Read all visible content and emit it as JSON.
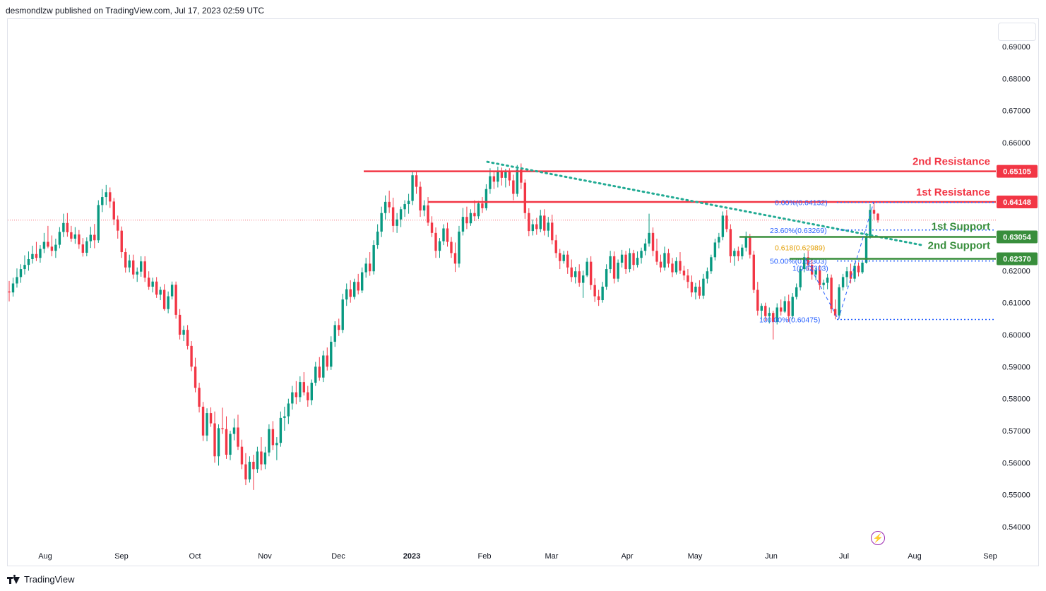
{
  "header": {
    "attribution": "desmondlzw published on TradingView.com, Jul 17, 2023 02:59 UTC"
  },
  "footer": {
    "brand": "TradingView"
  },
  "chart_data": {
    "type": "candlestick",
    "title": "",
    "ylim": [
      0.535,
      0.697
    ],
    "y_ticks": [
      "0.69000",
      "0.68000",
      "0.67000",
      "0.66000",
      "0.65000",
      "0.64000",
      "0.63000",
      "0.62000",
      "0.61000",
      "0.60000",
      "0.59000",
      "0.58000",
      "0.57000",
      "0.56000",
      "0.55000",
      "0.54000"
    ],
    "x_ticks": [
      "Aug",
      "Sep",
      "Oct",
      "Nov",
      "Dec",
      "2023",
      "Feb",
      "Mar",
      "Apr",
      "May",
      "Jun",
      "Jul",
      "Aug",
      "Sep"
    ],
    "grid": false,
    "colors": {
      "up": "#089981",
      "down": "#f23645",
      "resistance": "#f23645",
      "support": "#388e3c",
      "trend": "#22ab94",
      "fib": "#2962ff",
      "golden": "#e3a008"
    },
    "resistance_levels": [
      {
        "name": "2nd Resistance",
        "value": 0.65105,
        "label": "0.65105",
        "start": "Dec"
      },
      {
        "name": "1st Resistance",
        "value": 0.64148,
        "label": "0.64148",
        "start": "Jan"
      }
    ],
    "support_levels": [
      {
        "name": "1st Support",
        "value": 0.63054,
        "label": "0.63054",
        "start": "May"
      },
      {
        "name": "2nd Support",
        "value": 0.6237,
        "label": "0.62370",
        "start": "Jun"
      }
    ],
    "fib_levels": [
      {
        "label": "0.00%(0.64132)",
        "value": 0.64132
      },
      {
        "label": "23.60%(0.63269)",
        "value": 0.63269
      },
      {
        "label": "0.618(0.62989)",
        "value": 0.62989
      },
      {
        "label": "50.00%(0.62303)",
        "value": 0.62303
      },
      {
        "label": "1(0.62303)",
        "value": 0.62303
      },
      {
        "label": "100.00%(0.60475)",
        "value": 0.60475
      }
    ],
    "trendline": {
      "from": {
        "x": "Feb",
        "value": 0.654
      },
      "to": {
        "x": "Jul",
        "value": 0.628
      }
    },
    "last_price": 0.6358,
    "candles": [
      [
        0.6135,
        0.6168,
        0.6104,
        0.6132
      ],
      [
        0.6132,
        0.6178,
        0.6119,
        0.616
      ],
      [
        0.616,
        0.6207,
        0.6147,
        0.618
      ],
      [
        0.618,
        0.622,
        0.6162,
        0.6205
      ],
      [
        0.6205,
        0.6248,
        0.6188,
        0.6218
      ],
      [
        0.6218,
        0.626,
        0.62,
        0.6236
      ],
      [
        0.6236,
        0.6278,
        0.6222,
        0.6252
      ],
      [
        0.6252,
        0.629,
        0.623,
        0.624
      ],
      [
        0.624,
        0.628,
        0.6225,
        0.6268
      ],
      [
        0.6268,
        0.6318,
        0.6255,
        0.629
      ],
      [
        0.629,
        0.634,
        0.627,
        0.6275
      ],
      [
        0.6275,
        0.631,
        0.6245,
        0.6262
      ],
      [
        0.6262,
        0.63,
        0.624,
        0.6281
      ],
      [
        0.6281,
        0.6336,
        0.627,
        0.6321
      ],
      [
        0.6321,
        0.6378,
        0.6305,
        0.6349
      ],
      [
        0.6349,
        0.638,
        0.6306,
        0.632
      ],
      [
        0.632,
        0.634,
        0.629,
        0.63
      ],
      [
        0.63,
        0.6336,
        0.6284,
        0.6313
      ],
      [
        0.6313,
        0.6327,
        0.6268,
        0.6282
      ],
      [
        0.6282,
        0.6302,
        0.6244,
        0.6256
      ],
      [
        0.6256,
        0.6304,
        0.6245,
        0.6292
      ],
      [
        0.6292,
        0.6337,
        0.6271,
        0.6312
      ],
      [
        0.6312,
        0.6346,
        0.627,
        0.6295
      ],
      [
        0.6295,
        0.642,
        0.6287,
        0.6405
      ],
      [
        0.6405,
        0.6455,
        0.6383,
        0.643
      ],
      [
        0.643,
        0.6468,
        0.6405,
        0.6445
      ],
      [
        0.6445,
        0.646,
        0.6396,
        0.6416
      ],
      [
        0.6416,
        0.6427,
        0.6342,
        0.636
      ],
      [
        0.636,
        0.6372,
        0.63,
        0.6325
      ],
      [
        0.6325,
        0.6338,
        0.624,
        0.6258
      ],
      [
        0.6258,
        0.627,
        0.6194,
        0.621
      ],
      [
        0.621,
        0.625,
        0.6195,
        0.6232
      ],
      [
        0.6232,
        0.625,
        0.6175,
        0.6188
      ],
      [
        0.6188,
        0.621,
        0.6165,
        0.6197
      ],
      [
        0.6197,
        0.6245,
        0.6181,
        0.6229
      ],
      [
        0.6229,
        0.6245,
        0.6165,
        0.6178
      ],
      [
        0.6178,
        0.6198,
        0.614,
        0.615
      ],
      [
        0.615,
        0.6178,
        0.6132,
        0.6166
      ],
      [
        0.6166,
        0.618,
        0.6115,
        0.6125
      ],
      [
        0.6125,
        0.615,
        0.6108,
        0.614
      ],
      [
        0.614,
        0.6158,
        0.6075,
        0.608
      ],
      [
        0.608,
        0.6135,
        0.6067,
        0.612
      ],
      [
        0.612,
        0.6166,
        0.611,
        0.6156
      ],
      [
        0.6156,
        0.6166,
        0.605,
        0.6062
      ],
      [
        0.6062,
        0.608,
        0.5985,
        0.6
      ],
      [
        0.6,
        0.6028,
        0.598,
        0.6015
      ],
      [
        0.6015,
        0.603,
        0.5954,
        0.5965
      ],
      [
        0.5965,
        0.598,
        0.5886,
        0.59
      ],
      [
        0.59,
        0.5928,
        0.582,
        0.5834
      ],
      [
        0.5834,
        0.585,
        0.5757,
        0.5775
      ],
      [
        0.5775,
        0.579,
        0.5668,
        0.5685
      ],
      [
        0.5685,
        0.577,
        0.5667,
        0.5755
      ],
      [
        0.5755,
        0.5773,
        0.5712,
        0.5723
      ],
      [
        0.5723,
        0.576,
        0.56,
        0.562
      ],
      [
        0.562,
        0.572,
        0.5591,
        0.5708
      ],
      [
        0.5708,
        0.5772,
        0.569,
        0.5705
      ],
      [
        0.5705,
        0.5745,
        0.5612,
        0.5625
      ],
      [
        0.5625,
        0.57,
        0.5608,
        0.569
      ],
      [
        0.569,
        0.5738,
        0.567,
        0.571
      ],
      [
        0.571,
        0.575,
        0.564,
        0.565
      ],
      [
        0.565,
        0.5672,
        0.558,
        0.5595
      ],
      [
        0.5595,
        0.563,
        0.553,
        0.5548
      ],
      [
        0.5548,
        0.562,
        0.5538,
        0.5603
      ],
      [
        0.5603,
        0.5625,
        0.5515,
        0.558
      ],
      [
        0.558,
        0.565,
        0.5568,
        0.5635
      ],
      [
        0.5635,
        0.568,
        0.5576,
        0.5595
      ],
      [
        0.5595,
        0.565,
        0.558,
        0.5632
      ],
      [
        0.5632,
        0.572,
        0.562,
        0.5705
      ],
      [
        0.5705,
        0.573,
        0.564,
        0.5655
      ],
      [
        0.5655,
        0.568,
        0.5608,
        0.5662
      ],
      [
        0.5662,
        0.576,
        0.565,
        0.574
      ],
      [
        0.574,
        0.5775,
        0.57,
        0.5745
      ],
      [
        0.5745,
        0.58,
        0.5721,
        0.5785
      ],
      [
        0.5785,
        0.584,
        0.5766,
        0.582
      ],
      [
        0.582,
        0.5855,
        0.5783,
        0.5805
      ],
      [
        0.5805,
        0.587,
        0.579,
        0.5852
      ],
      [
        0.5852,
        0.5883,
        0.581,
        0.582
      ],
      [
        0.582,
        0.584,
        0.5775,
        0.5795
      ],
      [
        0.5795,
        0.586,
        0.578,
        0.585
      ],
      [
        0.585,
        0.5915,
        0.584,
        0.59
      ],
      [
        0.59,
        0.593,
        0.5856,
        0.5866
      ],
      [
        0.5866,
        0.595,
        0.5852,
        0.5935
      ],
      [
        0.5935,
        0.596,
        0.5888,
        0.59
      ],
      [
        0.59,
        0.5995,
        0.589,
        0.5978
      ],
      [
        0.5978,
        0.6042,
        0.5962,
        0.603
      ],
      [
        0.603,
        0.605,
        0.5996,
        0.6015
      ],
      [
        0.6015,
        0.6128,
        0.6005,
        0.611
      ],
      [
        0.611,
        0.616,
        0.609,
        0.6142
      ],
      [
        0.6142,
        0.617,
        0.61,
        0.6118
      ],
      [
        0.6118,
        0.6175,
        0.611,
        0.6165
      ],
      [
        0.6165,
        0.619,
        0.6126,
        0.6138
      ],
      [
        0.6138,
        0.621,
        0.613,
        0.6195
      ],
      [
        0.6195,
        0.624,
        0.6178,
        0.6222
      ],
      [
        0.6222,
        0.6258,
        0.6184,
        0.6198
      ],
      [
        0.6198,
        0.6295,
        0.6188,
        0.628
      ],
      [
        0.628,
        0.6345,
        0.6268,
        0.6322
      ],
      [
        0.6322,
        0.64,
        0.6305,
        0.638
      ],
      [
        0.638,
        0.6435,
        0.636,
        0.6415
      ],
      [
        0.6415,
        0.645,
        0.638,
        0.6398
      ],
      [
        0.6398,
        0.6428,
        0.632,
        0.634
      ],
      [
        0.634,
        0.638,
        0.6318,
        0.636
      ],
      [
        0.636,
        0.64,
        0.6336,
        0.6392
      ],
      [
        0.6392,
        0.642,
        0.6368,
        0.6408
      ],
      [
        0.6408,
        0.644,
        0.6378,
        0.6418
      ],
      [
        0.6418,
        0.6512,
        0.6405,
        0.6498
      ],
      [
        0.6498,
        0.651,
        0.644,
        0.6462
      ],
      [
        0.6462,
        0.6478,
        0.6368,
        0.6388
      ],
      [
        0.6388,
        0.642,
        0.637,
        0.6404
      ],
      [
        0.6404,
        0.643,
        0.634,
        0.635
      ],
      [
        0.635,
        0.637,
        0.6305,
        0.6318
      ],
      [
        0.6318,
        0.6335,
        0.624,
        0.6262
      ],
      [
        0.6262,
        0.6302,
        0.624,
        0.6292
      ],
      [
        0.6292,
        0.6345,
        0.628,
        0.6332
      ],
      [
        0.6332,
        0.635,
        0.6275,
        0.629
      ],
      [
        0.629,
        0.6305,
        0.624,
        0.6255
      ],
      [
        0.6255,
        0.6288,
        0.6196,
        0.6222
      ],
      [
        0.6222,
        0.634,
        0.621,
        0.6322
      ],
      [
        0.6322,
        0.6396,
        0.631,
        0.6368
      ],
      [
        0.6368,
        0.64,
        0.633,
        0.6348
      ],
      [
        0.6348,
        0.6392,
        0.634,
        0.638
      ],
      [
        0.638,
        0.642,
        0.6355,
        0.637
      ],
      [
        0.637,
        0.6418,
        0.6362,
        0.641
      ],
      [
        0.641,
        0.643,
        0.638,
        0.6395
      ],
      [
        0.6395,
        0.647,
        0.6388,
        0.6455
      ],
      [
        0.6455,
        0.652,
        0.644,
        0.6495
      ],
      [
        0.6495,
        0.651,
        0.6455,
        0.6478
      ],
      [
        0.6478,
        0.6525,
        0.646,
        0.6512
      ],
      [
        0.6512,
        0.6522,
        0.6466,
        0.649
      ],
      [
        0.649,
        0.6518,
        0.646,
        0.6508
      ],
      [
        0.6508,
        0.652,
        0.6465,
        0.6482
      ],
      [
        0.6482,
        0.65,
        0.642,
        0.644
      ],
      [
        0.644,
        0.653,
        0.6431,
        0.6516
      ],
      [
        0.6516,
        0.6535,
        0.6455,
        0.6475
      ],
      [
        0.6475,
        0.6485,
        0.6362,
        0.638
      ],
      [
        0.638,
        0.6395,
        0.6308,
        0.6324
      ],
      [
        0.6324,
        0.636,
        0.631,
        0.6345
      ],
      [
        0.6345,
        0.6365,
        0.6312,
        0.633
      ],
      [
        0.633,
        0.639,
        0.632,
        0.6372
      ],
      [
        0.6372,
        0.6392,
        0.631,
        0.6325
      ],
      [
        0.6325,
        0.6368,
        0.6305,
        0.635
      ],
      [
        0.635,
        0.6375,
        0.6282,
        0.6295
      ],
      [
        0.6295,
        0.6312,
        0.624,
        0.6255
      ],
      [
        0.6255,
        0.6268,
        0.6205,
        0.623
      ],
      [
        0.623,
        0.6262,
        0.6222,
        0.625
      ],
      [
        0.625,
        0.6262,
        0.619,
        0.621
      ],
      [
        0.621,
        0.6235,
        0.6165,
        0.618
      ],
      [
        0.618,
        0.6212,
        0.616,
        0.6198
      ],
      [
        0.6198,
        0.622,
        0.615,
        0.6162
      ],
      [
        0.6162,
        0.62,
        0.6115,
        0.6185
      ],
      [
        0.6185,
        0.624,
        0.618,
        0.6228
      ],
      [
        0.6228,
        0.6245,
        0.614,
        0.6155
      ],
      [
        0.6155,
        0.6176,
        0.6102,
        0.612
      ],
      [
        0.612,
        0.614,
        0.609,
        0.6108
      ],
      [
        0.6108,
        0.6165,
        0.61,
        0.615
      ],
      [
        0.615,
        0.622,
        0.614,
        0.6205
      ],
      [
        0.6205,
        0.6262,
        0.6192,
        0.6245
      ],
      [
        0.6245,
        0.626,
        0.616,
        0.6175
      ],
      [
        0.6175,
        0.6235,
        0.6165,
        0.6225
      ],
      [
        0.6225,
        0.6265,
        0.621,
        0.625
      ],
      [
        0.625,
        0.6262,
        0.619,
        0.6205
      ],
      [
        0.6205,
        0.627,
        0.6195,
        0.6255
      ],
      [
        0.6255,
        0.6265,
        0.62,
        0.6218
      ],
      [
        0.6218,
        0.626,
        0.621,
        0.624
      ],
      [
        0.624,
        0.6272,
        0.6222,
        0.6262
      ],
      [
        0.6262,
        0.63,
        0.6248,
        0.6285
      ],
      [
        0.6285,
        0.6378,
        0.6275,
        0.6318
      ],
      [
        0.6318,
        0.6335,
        0.6245,
        0.6262
      ],
      [
        0.6262,
        0.63,
        0.6218,
        0.6228
      ],
      [
        0.6228,
        0.625,
        0.6195,
        0.621
      ],
      [
        0.621,
        0.6275,
        0.62,
        0.6255
      ],
      [
        0.6255,
        0.6268,
        0.621,
        0.6222
      ],
      [
        0.6222,
        0.624,
        0.618,
        0.6195
      ],
      [
        0.6195,
        0.6242,
        0.6188,
        0.623
      ],
      [
        0.623,
        0.6258,
        0.619,
        0.62
      ],
      [
        0.62,
        0.6215,
        0.617,
        0.6185
      ],
      [
        0.6185,
        0.6205,
        0.6145,
        0.6165
      ],
      [
        0.6165,
        0.6185,
        0.6118,
        0.6132
      ],
      [
        0.6132,
        0.6162,
        0.611,
        0.615
      ],
      [
        0.615,
        0.617,
        0.6112,
        0.6122
      ],
      [
        0.6122,
        0.619,
        0.6112,
        0.6175
      ],
      [
        0.6175,
        0.621,
        0.616,
        0.6198
      ],
      [
        0.6198,
        0.625,
        0.619,
        0.6242
      ],
      [
        0.6242,
        0.63,
        0.6232,
        0.6288
      ],
      [
        0.6288,
        0.6318,
        0.627,
        0.6305
      ],
      [
        0.6305,
        0.6385,
        0.6295,
        0.6372
      ],
      [
        0.6372,
        0.639,
        0.632,
        0.633
      ],
      [
        0.633,
        0.6345,
        0.6225,
        0.6245
      ],
      [
        0.6245,
        0.627,
        0.6215,
        0.6262
      ],
      [
        0.6262,
        0.6275,
        0.623,
        0.6245
      ],
      [
        0.6245,
        0.6282,
        0.6235,
        0.6272
      ],
      [
        0.6272,
        0.6322,
        0.626,
        0.6305
      ],
      [
        0.6305,
        0.6315,
        0.6238,
        0.625
      ],
      [
        0.625,
        0.6262,
        0.613,
        0.614
      ],
      [
        0.614,
        0.6165,
        0.606,
        0.6075
      ],
      [
        0.6075,
        0.6098,
        0.6045,
        0.609
      ],
      [
        0.609,
        0.61,
        0.6042,
        0.6058
      ],
      [
        0.6058,
        0.6085,
        0.6035,
        0.6068
      ],
      [
        0.6068,
        0.6075,
        0.5985,
        0.604
      ],
      [
        0.604,
        0.6098,
        0.6032,
        0.6085
      ],
      [
        0.6085,
        0.611,
        0.606,
        0.6072
      ],
      [
        0.6072,
        0.612,
        0.6068,
        0.6105
      ],
      [
        0.6105,
        0.6125,
        0.604,
        0.6058
      ],
      [
        0.6058,
        0.613,
        0.6048,
        0.6118
      ],
      [
        0.6118,
        0.616,
        0.611,
        0.6148
      ],
      [
        0.6148,
        0.6215,
        0.6138,
        0.6205
      ],
      [
        0.6205,
        0.6255,
        0.6195,
        0.6242
      ],
      [
        0.6242,
        0.6262,
        0.62,
        0.6218
      ],
      [
        0.6218,
        0.624,
        0.6172,
        0.6188
      ],
      [
        0.6188,
        0.621,
        0.617,
        0.6202
      ],
      [
        0.6202,
        0.6218,
        0.614,
        0.6155
      ],
      [
        0.6155,
        0.6172,
        0.614,
        0.6162
      ],
      [
        0.6162,
        0.619,
        0.6142,
        0.6178
      ],
      [
        0.6178,
        0.6188,
        0.6068,
        0.608
      ],
      [
        0.608,
        0.611,
        0.6048,
        0.606
      ],
      [
        0.606,
        0.6158,
        0.605,
        0.6148
      ],
      [
        0.6148,
        0.619,
        0.6138,
        0.618
      ],
      [
        0.618,
        0.6212,
        0.615,
        0.6198
      ],
      [
        0.6198,
        0.6222,
        0.616,
        0.6175
      ],
      [
        0.6175,
        0.6225,
        0.6165,
        0.6215
      ],
      [
        0.6215,
        0.6226,
        0.6182,
        0.6195
      ],
      [
        0.6195,
        0.6228,
        0.619,
        0.6225
      ],
      [
        0.6225,
        0.6318,
        0.6222,
        0.6308
      ],
      [
        0.6308,
        0.6408,
        0.63,
        0.639
      ],
      [
        0.639,
        0.6414,
        0.636,
        0.6378
      ],
      [
        0.6378,
        0.638,
        0.635,
        0.6358
      ]
    ]
  }
}
